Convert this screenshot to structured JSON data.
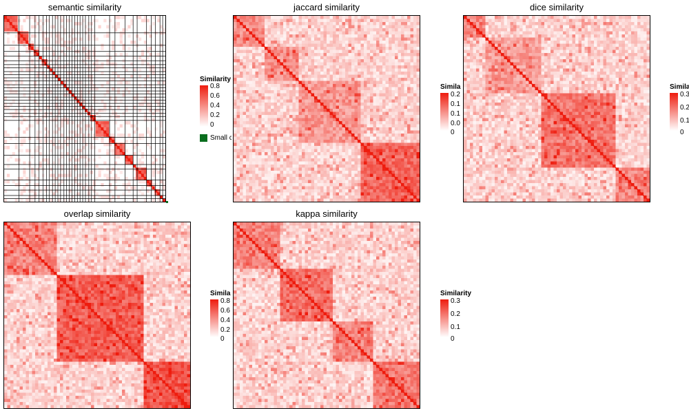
{
  "chart_data": [
    {
      "type": "heatmap",
      "title": "semantic similarity",
      "matrix_size": 240,
      "value_range": [
        0,
        0.8
      ],
      "colors": {
        "low": "#ffffff",
        "high": "#ee1c0e",
        "cluster_border": "#000000"
      },
      "legend": {
        "title": "Similarity",
        "ticks": [
          "0.8",
          "0.6",
          "0.4",
          "0.2",
          "0"
        ],
        "extra_label": "Small clusters",
        "extra_color": "#0a6e1e"
      },
      "cluster_boundaries": [
        0,
        22,
        38,
        46,
        52,
        58,
        63,
        67,
        72,
        76,
        80,
        84,
        89,
        93,
        97,
        101,
        105,
        109,
        113,
        117,
        121,
        126,
        130,
        135,
        157,
        165,
        180,
        192,
        198,
        212,
        219,
        225,
        232,
        236,
        240
      ]
    },
    {
      "type": "heatmap",
      "title": "jaccard similarity",
      "matrix_size": 240,
      "value_range": [
        0,
        0.25
      ],
      "colors": {
        "low": "#ffffff",
        "high": "#ee1c0e"
      },
      "legend": {
        "title": "Similarity",
        "ticks": [
          "0.2",
          "0.1",
          "0.1",
          "0.0",
          "0"
        ]
      },
      "cluster_boundaries": [
        0,
        40,
        85,
        165,
        240
      ]
    },
    {
      "type": "heatmap",
      "title": "dice similarity",
      "matrix_size": 240,
      "value_range": [
        0,
        0.35
      ],
      "colors": {
        "low": "#ffffff",
        "high": "#ee1c0e"
      },
      "legend": {
        "title": "Similarity",
        "ticks": [
          "0.3",
          "0.2",
          "0.1",
          "0"
        ]
      },
      "cluster_boundaries": [
        0,
        30,
        100,
        195,
        240
      ]
    },
    {
      "type": "heatmap",
      "title": "overlap similarity",
      "matrix_size": 240,
      "value_range": [
        0,
        0.85
      ],
      "colors": {
        "low": "#ffffff",
        "high": "#ee1c0e"
      },
      "legend": {
        "title": "Similarity",
        "ticks": [
          "0.8",
          "0.6",
          "0.4",
          "0.2",
          "0"
        ]
      },
      "cluster_boundaries": [
        0,
        70,
        180,
        240
      ]
    },
    {
      "type": "heatmap",
      "title": "kappa similarity",
      "matrix_size": 240,
      "value_range": [
        0,
        0.3
      ],
      "colors": {
        "low": "#ffffff",
        "high": "#ee1c0e"
      },
      "legend": {
        "title": "Similarity",
        "ticks": [
          "0.3",
          "0.2",
          "0.1",
          "0"
        ]
      },
      "cluster_boundaries": [
        0,
        60,
        130,
        180,
        240
      ]
    }
  ]
}
